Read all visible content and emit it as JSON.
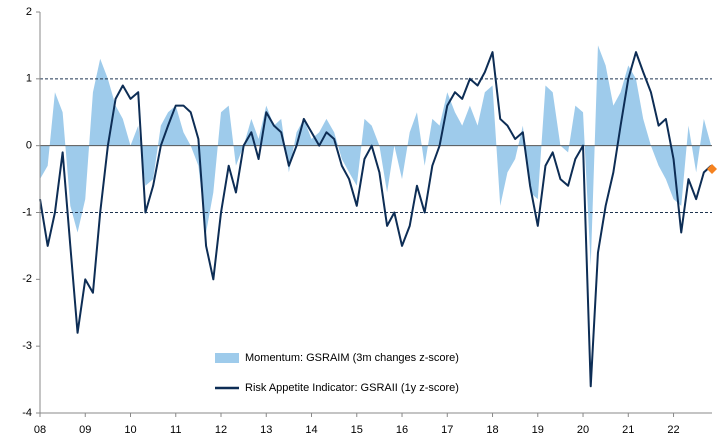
{
  "chart_data": {
    "type": "line",
    "x": [
      2008,
      2008.17,
      2008.33,
      2008.5,
      2008.67,
      2008.83,
      2009,
      2009.17,
      2009.33,
      2009.5,
      2009.67,
      2009.83,
      2010,
      2010.17,
      2010.33,
      2010.5,
      2010.67,
      2010.83,
      2011,
      2011.17,
      2011.33,
      2011.5,
      2011.67,
      2011.83,
      2012,
      2012.17,
      2012.33,
      2012.5,
      2012.67,
      2012.83,
      2013,
      2013.17,
      2013.33,
      2013.5,
      2013.67,
      2013.83,
      2014,
      2014.17,
      2014.33,
      2014.5,
      2014.67,
      2014.83,
      2015,
      2015.17,
      2015.33,
      2015.5,
      2015.67,
      2015.83,
      2016,
      2016.17,
      2016.33,
      2016.5,
      2016.67,
      2016.83,
      2017,
      2017.17,
      2017.33,
      2017.5,
      2017.67,
      2017.83,
      2018,
      2018.17,
      2018.33,
      2018.5,
      2018.67,
      2018.83,
      2019,
      2019.17,
      2019.33,
      2019.5,
      2019.67,
      2019.83,
      2020,
      2020.17,
      2020.33,
      2020.5,
      2020.67,
      2020.83,
      2021,
      2021.17,
      2021.33,
      2021.5,
      2021.67,
      2021.83,
      2022,
      2022.17,
      2022.33,
      2022.5,
      2022.67,
      2022.83
    ],
    "series": [
      {
        "name": "Momentum: GSRAIM (3m changes z-score)",
        "style": "area",
        "color": "#9ecbeb",
        "values": [
          -0.5,
          -0.3,
          0.8,
          0.5,
          -0.9,
          -1.3,
          -0.8,
          0.8,
          1.3,
          1.0,
          0.6,
          0.4,
          0.0,
          0.3,
          -0.6,
          -0.5,
          0.3,
          0.5,
          0.6,
          0.2,
          0.0,
          -0.3,
          -1.3,
          -0.7,
          0.5,
          0.6,
          -0.3,
          0.0,
          0.4,
          0.1,
          0.6,
          0.3,
          0.4,
          -0.4,
          0.2,
          0.4,
          0.1,
          0.2,
          0.4,
          0.2,
          -0.2,
          -0.4,
          -0.6,
          0.4,
          0.3,
          0.0,
          -0.7,
          0.0,
          -0.5,
          0.2,
          0.5,
          -0.3,
          0.4,
          0.3,
          0.8,
          0.5,
          0.3,
          0.6,
          0.3,
          0.8,
          0.9,
          -0.9,
          -0.4,
          -0.2,
          0.3,
          -0.7,
          -0.8,
          0.9,
          0.8,
          0.0,
          -0.1,
          0.6,
          0.5,
          -1.8,
          1.5,
          1.2,
          0.6,
          0.8,
          1.2,
          1.0,
          0.4,
          0.0,
          -0.3,
          -0.5,
          -0.8,
          -0.9,
          0.3,
          -0.4,
          0.4,
          0.0
        ]
      },
      {
        "name": "Risk Appetite Indicator: GSRAII (1y z-score)",
        "style": "line",
        "color": "#0d2d55",
        "values": [
          -0.8,
          -1.5,
          -1.0,
          -0.1,
          -1.5,
          -2.8,
          -2.0,
          -2.2,
          -1.0,
          0.0,
          0.7,
          0.9,
          0.7,
          0.8,
          -1.0,
          -0.6,
          0.0,
          0.3,
          0.6,
          0.6,
          0.5,
          0.1,
          -1.5,
          -2.0,
          -1.0,
          -0.3,
          -0.7,
          0.0,
          0.2,
          -0.2,
          0.5,
          0.3,
          0.2,
          -0.3,
          0.0,
          0.4,
          0.2,
          0.0,
          0.2,
          0.1,
          -0.3,
          -0.5,
          -0.9,
          -0.2,
          0.0,
          -0.4,
          -1.2,
          -1.0,
          -1.5,
          -1.2,
          -0.6,
          -1.0,
          -0.3,
          0.0,
          0.6,
          0.8,
          0.7,
          1.0,
          0.9,
          1.1,
          1.4,
          0.4,
          0.3,
          0.1,
          0.2,
          -0.6,
          -1.2,
          -0.3,
          -0.1,
          -0.5,
          -0.6,
          -0.2,
          0.0,
          -3.6,
          -1.6,
          -0.9,
          -0.4,
          0.3,
          1.0,
          1.4,
          1.1,
          0.8,
          0.3,
          0.4,
          -0.2,
          -1.3,
          -0.5,
          -0.8,
          -0.4,
          -0.3
        ]
      }
    ],
    "latest_marker": {
      "x": 2022.85,
      "y": -0.35,
      "color": "#f58220"
    },
    "xlim": [
      2008,
      2022.85
    ],
    "xticks": [
      {
        "value": 2008,
        "label": "08"
      },
      {
        "value": 2009,
        "label": "09"
      },
      {
        "value": 2010,
        "label": "10"
      },
      {
        "value": 2011,
        "label": "11"
      },
      {
        "value": 2012,
        "label": "12"
      },
      {
        "value": 2013,
        "label": "13"
      },
      {
        "value": 2014,
        "label": "14"
      },
      {
        "value": 2015,
        "label": "15"
      },
      {
        "value": 2016,
        "label": "16"
      },
      {
        "value": 2017,
        "label": "17"
      },
      {
        "value": 2018,
        "label": "18"
      },
      {
        "value": 2019,
        "label": "19"
      },
      {
        "value": 2020,
        "label": "20"
      },
      {
        "value": 2021,
        "label": "21"
      },
      {
        "value": 2022,
        "label": "22"
      }
    ],
    "ylim": [
      -4,
      2
    ],
    "yticks": [
      2,
      1,
      0,
      -1,
      -2,
      -3,
      -4
    ],
    "reference_lines": [
      1,
      -1
    ],
    "legend": "bottom-center"
  }
}
